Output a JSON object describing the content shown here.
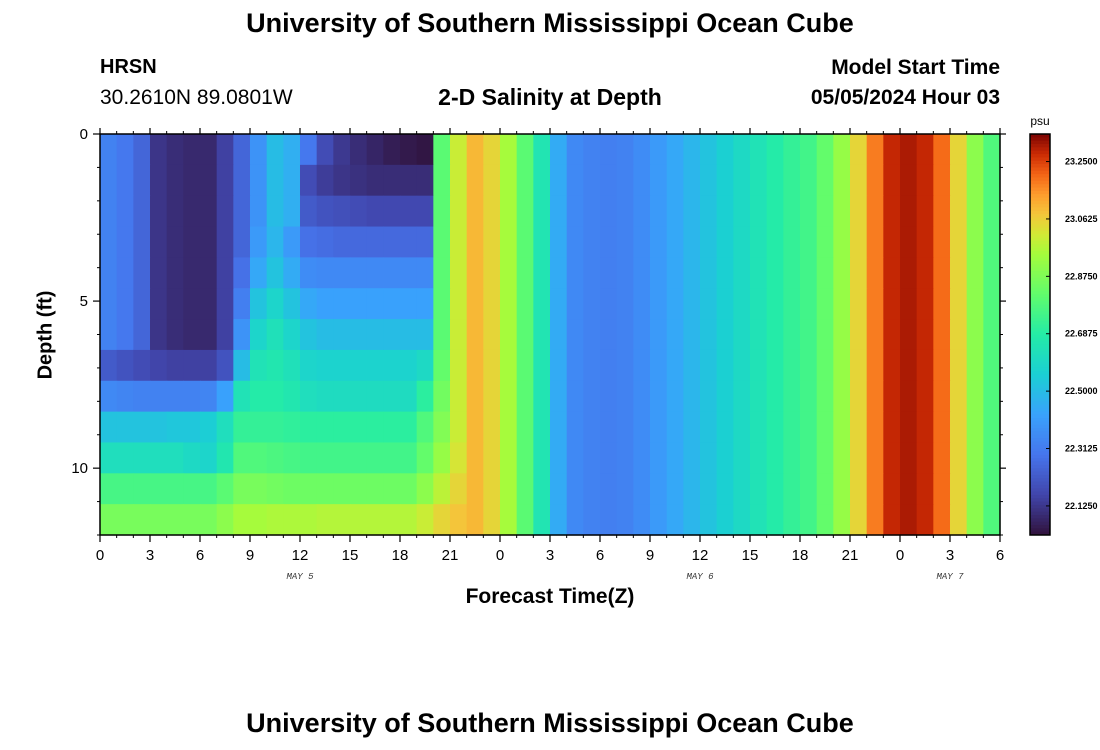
{
  "header": {
    "title": "University of Southern Mississippi Ocean Cube",
    "station": "HRSN",
    "coords": "30.2610N  89.0801W",
    "subtitle": "2-D Salinity at Depth",
    "model_start_label": "Model Start Time",
    "model_start_value": "05/05/2024 Hour 03"
  },
  "footer": {
    "title": "University of Southern Mississippi Ocean Cube"
  },
  "chart_data": {
    "type": "heatmap",
    "title": "2-D Salinity at Depth",
    "xlabel": "Forecast Time(Z)",
    "ylabel": "Depth (ft)",
    "x_range_hours": [
      0,
      54
    ],
    "y_range_ft": [
      0,
      12
    ],
    "x_tick_labels": [
      "0",
      "3",
      "6",
      "9",
      "12",
      "15",
      "18",
      "21",
      "0",
      "3",
      "6",
      "9",
      "12",
      "15",
      "18",
      "21",
      "0",
      "3",
      "6"
    ],
    "y_tick_labels": [
      "0",
      "5",
      "10"
    ],
    "y_tick_values": [
      0,
      5,
      10
    ],
    "day_labels": [
      {
        "label": "MAY 5",
        "hour": 12
      },
      {
        "label": "MAY 6",
        "hour": 36
      },
      {
        "label": "MAY 7",
        "hour": 51
      }
    ],
    "colorbar": {
      "unit": "psu",
      "min": 22.03,
      "max": 23.34,
      "tick_labels": [
        "23.2500",
        "23.0625",
        "22.8750",
        "22.6875",
        "22.5000",
        "22.3125",
        "22.1250"
      ],
      "tick_values": [
        23.25,
        23.0625,
        22.875,
        22.6875,
        22.5,
        22.3125,
        22.125
      ]
    },
    "x_hours": [
      0,
      1,
      2,
      3,
      4,
      5,
      6,
      7,
      8,
      9,
      10,
      11,
      12,
      13,
      14,
      15,
      16,
      17,
      18,
      19,
      20,
      21,
      22,
      23,
      24,
      25,
      26,
      27,
      28,
      29,
      30,
      31,
      32,
      33,
      34,
      35,
      36,
      37,
      38,
      39,
      40,
      41,
      42,
      43,
      44,
      45,
      46,
      47,
      48,
      49,
      50,
      51,
      52,
      53
    ],
    "rows": [
      {
        "depth_ft": 0,
        "values": [
          22.33,
          22.3,
          22.25,
          22.12,
          22.1,
          22.09,
          22.09,
          22.15,
          22.25,
          22.38,
          22.5,
          22.46,
          22.3,
          22.18,
          22.13,
          22.1,
          22.08,
          22.06,
          22.05,
          22.04,
          22.8,
          23.0,
          23.1,
          23.05,
          22.95,
          22.8,
          22.65,
          22.45,
          22.35,
          22.33,
          22.32,
          22.33,
          22.36,
          22.4,
          22.44,
          22.48,
          22.52,
          22.56,
          22.6,
          22.64,
          22.68,
          22.72,
          22.75,
          22.82,
          22.92,
          23.05,
          23.18,
          23.28,
          23.3,
          23.28,
          23.2,
          23.05,
          22.9,
          22.78
        ]
      },
      {
        "depth_ft": 1,
        "values": [
          22.33,
          22.3,
          22.25,
          22.12,
          22.1,
          22.09,
          22.09,
          22.15,
          22.25,
          22.38,
          22.5,
          22.46,
          22.18,
          22.14,
          22.12,
          22.11,
          22.1,
          22.1,
          22.1,
          22.1,
          22.8,
          23.0,
          23.1,
          23.05,
          22.95,
          22.8,
          22.65,
          22.45,
          22.35,
          22.33,
          22.32,
          22.33,
          22.36,
          22.4,
          22.44,
          22.48,
          22.52,
          22.56,
          22.6,
          22.64,
          22.68,
          22.72,
          22.75,
          22.82,
          22.92,
          23.05,
          23.18,
          23.28,
          23.3,
          23.28,
          23.2,
          23.05,
          22.9,
          22.78
        ]
      },
      {
        "depth_ft": 2,
        "values": [
          22.33,
          22.3,
          22.25,
          22.12,
          22.1,
          22.09,
          22.09,
          22.15,
          22.25,
          22.38,
          22.5,
          22.46,
          22.22,
          22.2,
          22.19,
          22.18,
          22.17,
          22.17,
          22.17,
          22.17,
          22.8,
          23.0,
          23.1,
          23.05,
          22.95,
          22.8,
          22.65,
          22.45,
          22.35,
          22.33,
          22.32,
          22.33,
          22.36,
          22.4,
          22.44,
          22.48,
          22.52,
          22.56,
          22.6,
          22.64,
          22.68,
          22.72,
          22.75,
          22.82,
          22.92,
          23.05,
          23.18,
          23.28,
          23.3,
          23.28,
          23.2,
          23.05,
          22.9,
          22.78
        ]
      },
      {
        "depth_ft": 3,
        "values": [
          22.33,
          22.3,
          22.25,
          22.12,
          22.1,
          22.09,
          22.09,
          22.15,
          22.25,
          22.4,
          22.48,
          22.4,
          22.28,
          22.27,
          22.26,
          22.26,
          22.26,
          22.26,
          22.26,
          22.26,
          22.8,
          23.0,
          23.1,
          23.05,
          22.95,
          22.8,
          22.65,
          22.45,
          22.35,
          22.33,
          22.32,
          22.33,
          22.36,
          22.4,
          22.44,
          22.48,
          22.52,
          22.56,
          22.6,
          22.64,
          22.68,
          22.72,
          22.75,
          22.82,
          22.92,
          23.05,
          23.18,
          23.28,
          23.3,
          23.28,
          23.2,
          23.05,
          22.9,
          22.78
        ]
      },
      {
        "depth_ft": 4,
        "values": [
          22.33,
          22.3,
          22.25,
          22.12,
          22.1,
          22.09,
          22.09,
          22.15,
          22.28,
          22.44,
          22.52,
          22.45,
          22.36,
          22.35,
          22.35,
          22.35,
          22.35,
          22.35,
          22.35,
          22.35,
          22.8,
          23.0,
          23.1,
          23.05,
          22.95,
          22.8,
          22.65,
          22.45,
          22.35,
          22.33,
          22.32,
          22.33,
          22.36,
          22.4,
          22.44,
          22.48,
          22.52,
          22.56,
          22.6,
          22.64,
          22.68,
          22.72,
          22.75,
          22.82,
          22.92,
          23.05,
          23.18,
          23.28,
          23.3,
          23.28,
          23.2,
          23.05,
          22.9,
          22.78
        ]
      },
      {
        "depth_ft": 5,
        "values": [
          22.33,
          22.3,
          22.25,
          22.12,
          22.1,
          22.09,
          22.09,
          22.15,
          22.32,
          22.52,
          22.58,
          22.52,
          22.44,
          22.42,
          22.42,
          22.42,
          22.42,
          22.42,
          22.42,
          22.42,
          22.8,
          23.0,
          23.1,
          23.05,
          22.95,
          22.8,
          22.65,
          22.45,
          22.35,
          22.33,
          22.32,
          22.33,
          22.36,
          22.4,
          22.44,
          22.48,
          22.52,
          22.56,
          22.6,
          22.64,
          22.68,
          22.72,
          22.75,
          22.82,
          22.92,
          23.05,
          23.18,
          23.28,
          23.3,
          23.28,
          23.2,
          23.05,
          22.9,
          22.78
        ]
      },
      {
        "depth_ft": 6,
        "values": [
          22.33,
          22.3,
          22.25,
          22.12,
          22.1,
          22.09,
          22.09,
          22.15,
          22.38,
          22.58,
          22.63,
          22.58,
          22.52,
          22.5,
          22.5,
          22.5,
          22.5,
          22.5,
          22.5,
          22.5,
          22.8,
          23.0,
          23.1,
          23.05,
          22.95,
          22.8,
          22.65,
          22.45,
          22.35,
          22.33,
          22.32,
          22.33,
          22.36,
          22.4,
          22.44,
          22.48,
          22.52,
          22.56,
          22.6,
          22.64,
          22.68,
          22.72,
          22.75,
          22.82,
          22.92,
          23.05,
          23.18,
          23.28,
          23.3,
          23.28,
          23.2,
          23.05,
          22.9,
          22.78
        ]
      },
      {
        "depth_ft": 7,
        "values": [
          22.22,
          22.2,
          22.18,
          22.16,
          22.15,
          22.15,
          22.15,
          22.2,
          22.5,
          22.64,
          22.66,
          22.63,
          22.58,
          22.57,
          22.57,
          22.57,
          22.57,
          22.57,
          22.57,
          22.6,
          22.82,
          23.0,
          23.1,
          23.05,
          22.95,
          22.8,
          22.65,
          22.45,
          22.35,
          22.33,
          22.32,
          22.33,
          22.36,
          22.4,
          22.44,
          22.48,
          22.52,
          22.56,
          22.6,
          22.64,
          22.68,
          22.72,
          22.75,
          22.82,
          22.92,
          23.05,
          23.18,
          23.28,
          23.3,
          23.28,
          23.2,
          23.05,
          22.9,
          22.78
        ]
      },
      {
        "depth_ft": 8,
        "values": [
          22.35,
          22.34,
          22.33,
          22.33,
          22.33,
          22.33,
          22.34,
          22.42,
          22.64,
          22.68,
          22.68,
          22.66,
          22.62,
          22.61,
          22.61,
          22.61,
          22.61,
          22.61,
          22.61,
          22.7,
          22.85,
          23.0,
          23.1,
          23.05,
          22.95,
          22.8,
          22.65,
          22.45,
          22.35,
          22.33,
          22.32,
          22.33,
          22.36,
          22.4,
          22.44,
          22.48,
          22.52,
          22.56,
          22.6,
          22.64,
          22.68,
          22.72,
          22.75,
          22.82,
          22.92,
          23.05,
          23.18,
          23.28,
          23.3,
          23.28,
          23.2,
          23.05,
          22.9,
          22.78
        ]
      },
      {
        "depth_ft": 9,
        "values": [
          22.52,
          22.52,
          22.52,
          22.52,
          22.53,
          22.53,
          22.55,
          22.62,
          22.72,
          22.72,
          22.72,
          22.71,
          22.7,
          22.7,
          22.7,
          22.7,
          22.7,
          22.7,
          22.7,
          22.78,
          22.88,
          23.0,
          23.1,
          23.05,
          22.95,
          22.8,
          22.65,
          22.45,
          22.35,
          22.33,
          22.32,
          22.33,
          22.36,
          22.4,
          22.44,
          22.48,
          22.52,
          22.56,
          22.6,
          22.64,
          22.68,
          22.72,
          22.75,
          22.82,
          22.92,
          23.05,
          23.18,
          23.28,
          23.3,
          23.28,
          23.2,
          23.05,
          22.9,
          22.78
        ]
      },
      {
        "depth_ft": 10,
        "values": [
          22.62,
          22.62,
          22.62,
          22.62,
          22.62,
          22.6,
          22.58,
          22.66,
          22.78,
          22.78,
          22.77,
          22.76,
          22.75,
          22.75,
          22.75,
          22.75,
          22.75,
          22.75,
          22.75,
          22.82,
          22.92,
          23.02,
          23.1,
          23.05,
          22.95,
          22.8,
          22.65,
          22.45,
          22.35,
          22.33,
          22.32,
          22.33,
          22.36,
          22.4,
          22.44,
          22.48,
          22.52,
          22.56,
          22.6,
          22.64,
          22.68,
          22.72,
          22.75,
          22.82,
          22.92,
          23.05,
          23.18,
          23.28,
          23.3,
          23.28,
          23.2,
          23.05,
          22.9,
          22.78
        ]
      },
      {
        "depth_ft": 11,
        "values": [
          22.76,
          22.76,
          22.76,
          22.76,
          22.76,
          22.76,
          22.76,
          22.8,
          22.86,
          22.86,
          22.85,
          22.84,
          22.84,
          22.84,
          22.84,
          22.84,
          22.84,
          22.84,
          22.84,
          22.9,
          22.98,
          23.05,
          23.1,
          23.05,
          22.95,
          22.8,
          22.65,
          22.45,
          22.35,
          22.33,
          22.32,
          22.33,
          22.36,
          22.4,
          22.44,
          22.48,
          22.52,
          22.56,
          22.6,
          22.64,
          22.68,
          22.72,
          22.75,
          22.82,
          22.92,
          23.05,
          23.18,
          23.28,
          23.3,
          23.28,
          23.2,
          23.05,
          22.9,
          22.78
        ]
      },
      {
        "depth_ft": 12,
        "values": [
          22.86,
          22.86,
          22.86,
          22.86,
          22.86,
          22.86,
          22.86,
          22.9,
          22.95,
          22.95,
          22.96,
          22.96,
          22.96,
          22.97,
          22.97,
          22.97,
          22.97,
          22.97,
          22.97,
          23.0,
          23.05,
          23.08,
          23.1,
          23.05,
          22.95,
          22.8,
          22.65,
          22.45,
          22.35,
          22.33,
          22.32,
          22.33,
          22.36,
          22.4,
          22.44,
          22.48,
          22.52,
          22.56,
          22.6,
          22.64,
          22.68,
          22.72,
          22.75,
          22.82,
          22.92,
          23.05,
          23.18,
          23.28,
          23.3,
          23.28,
          23.2,
          23.05,
          22.9,
          22.78
        ]
      }
    ]
  }
}
